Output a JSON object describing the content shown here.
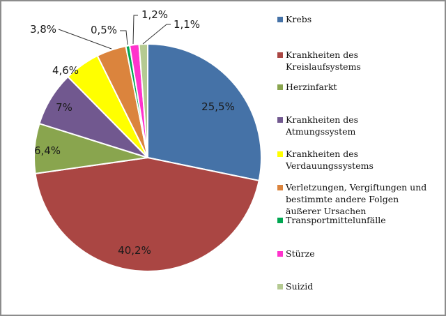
{
  "chart_data": {
    "type": "pie",
    "title": "",
    "start_angle_deg": 0,
    "direction": "clockwise",
    "categories": [
      "Krebs",
      "Krankheiten des Kreislaufsystems",
      "Herzinfarkt",
      "Krankheiten des Atmungssystem",
      "Krankheiten des Verdauungssystems",
      "Verletzungen, Vergiftungen und bestimmte andere Folgen äußerer Ursachen",
      "Transportmittelunfälle",
      "Stürze",
      "Suizid"
    ],
    "values": [
      25.5,
      40.2,
      6.4,
      7.0,
      4.6,
      3.8,
      0.5,
      1.2,
      1.1
    ],
    "data_labels": [
      "25,5%",
      "40,2%",
      "6,4%",
      "7%",
      "4,6%",
      "3,8%",
      "0,5%",
      "1,2%",
      "1,1%"
    ],
    "colors": [
      "#4572a7",
      "#aa4643",
      "#89a54e",
      "#71588f",
      "#ffff00",
      "#db843d",
      "#00a651",
      "#ff33cc",
      "#b5ca92"
    ],
    "legend_position": "right",
    "unit": "%"
  },
  "legend": {
    "items": [
      {
        "label": "Krebs",
        "color": "#4572a7"
      },
      {
        "label": "Krankheiten des\nKreislaufsystems",
        "color": "#aa4643"
      },
      {
        "label": "Herzinfarkt",
        "color": "#89a54e"
      },
      {
        "label": "Krankheiten des\nAtmungssystem",
        "color": "#71588f"
      },
      {
        "label": "Krankheiten des\nVerdauungssystems",
        "color": "#ffff00"
      },
      {
        "label": "Verletzungen, Vergiftungen und\nbestimmte andere Folgen\näußerer Ursachen",
        "color": "#db843d"
      },
      {
        "label": "Transportmittelunfälle",
        "color": "#00a651"
      },
      {
        "label": "Stürze",
        "color": "#ff33cc"
      },
      {
        "label": "Suizid",
        "color": "#b5ca92"
      }
    ]
  }
}
